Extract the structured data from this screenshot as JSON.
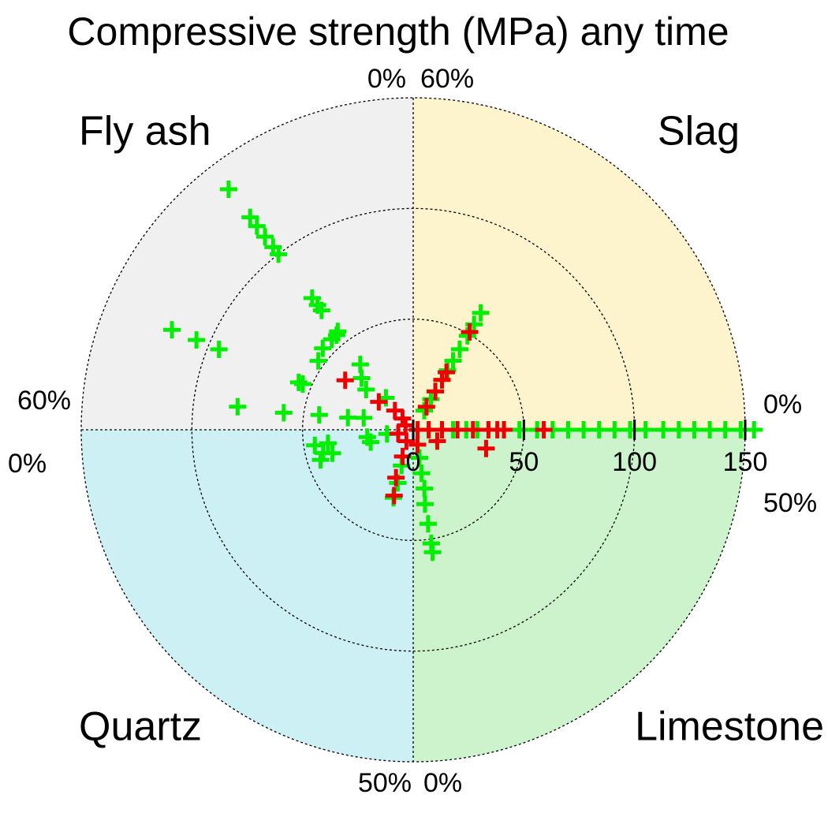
{
  "chart_data": {
    "type": "polar",
    "title": "Compressive strength (MPa) any time",
    "rlim": [
      0,
      150
    ],
    "rticks": [
      0,
      50,
      100,
      150
    ],
    "sectors": [
      {
        "label": "Slag",
        "color": "#fdf3cc",
        "ticks": [
          {
            "value": 0,
            "label": "0%"
          },
          {
            "value": 60,
            "label": "60%"
          }
        ],
        "series": [
          {
            "color": "#00ee00",
            "x": [
              0,
              0,
              0,
              0,
              0,
              0,
              0,
              0,
              0,
              0,
              0,
              0,
              0,
              0,
              0,
              0,
              0,
              0,
              0,
              0,
              0,
              0,
              0,
              40,
              40,
              40,
              40,
              40,
              40,
              40,
              40,
              40,
              40
            ],
            "values": [
              7,
              13,
              18,
              24,
              29,
              34,
              41,
              48,
              56,
              63,
              70,
              77,
              84,
              91,
              98,
              105,
              113,
              120,
              127,
              134,
              141,
              148,
              154,
              61,
              55,
              49,
              42,
              36,
              31,
              26,
              20,
              16,
              10
            ]
          },
          {
            "color": "#ee0000",
            "x": [
              0,
              0,
              0,
              0,
              0,
              0,
              0,
              0,
              0,
              40,
              40,
              40,
              40,
              40
            ],
            "values": [
              2,
              7,
              13,
              20,
              27,
              34,
              38,
              41,
              59,
              51,
              30,
              26,
              20,
              12
            ]
          }
        ]
      },
      {
        "label": "Fly ash",
        "color": "#f0f0f0",
        "ticks": [
          {
            "value": 0,
            "label": "0%"
          },
          {
            "value": 60,
            "label": "60%"
          }
        ],
        "series": [
          {
            "color": "#00ee00",
            "x": [
              25,
              25,
              25,
              25,
              25,
              25,
              25,
              25,
              25,
              45,
              45,
              45,
              45,
              45,
              55,
              55,
              54,
              25,
              28,
              32,
              26,
              36,
              26,
              30,
              33,
              27,
              53,
              51
            ],
            "values": [
              137,
              121,
              116,
              110,
              104,
              100,
              75,
              71,
              68,
              118,
              106,
              95,
              56,
              54,
              80,
              59,
              43,
              56,
              55,
              55,
              55,
              53,
              38,
              33,
              28,
              19,
              30,
              23
            ]
          },
          {
            "color": "#ee0000",
            "x": [
              36,
              34,
              29,
              29,
              40
            ],
            "values": [
              38,
              20,
              12,
              7,
              4
            ]
          }
        ]
      },
      {
        "label": "Quartz",
        "color": "#ccf0f3",
        "ticks": [
          {
            "value": 0,
            "label": "0%"
          },
          {
            "value": 50,
            "label": "50%"
          }
        ],
        "series": [
          {
            "color": "#00ee00",
            "x": [
              5,
              8,
              9,
              10,
              5,
              5,
              9,
              41,
              41,
              40,
              5
            ],
            "values": [
              45,
              42,
              38,
              44,
              39,
              21,
              20,
              32,
              25,
              17,
              12
            ]
          },
          {
            "color": "#ee0000",
            "x": [
              41,
              39,
              38,
              33,
              8
            ],
            "values": [
              31,
              23,
              13,
              6,
              7
            ]
          }
        ]
      },
      {
        "label": "Limestone",
        "color": "#ccf3cc",
        "ticks": [
          {
            "value": 0,
            "label": "0%"
          },
          {
            "value": 50,
            "label": "50%"
          }
        ],
        "series": [
          {
            "color": "#00ee00",
            "x": [
              5,
              5,
              5,
              5,
              6,
              6,
              7
            ],
            "values": [
              56,
              52,
              43,
              34,
              27,
              20,
              13
            ]
          },
          {
            "color": "#ee0000",
            "x": [
              42,
              36,
              9
            ],
            "values": [
              34,
              12,
              7
            ]
          }
        ]
      }
    ]
  }
}
